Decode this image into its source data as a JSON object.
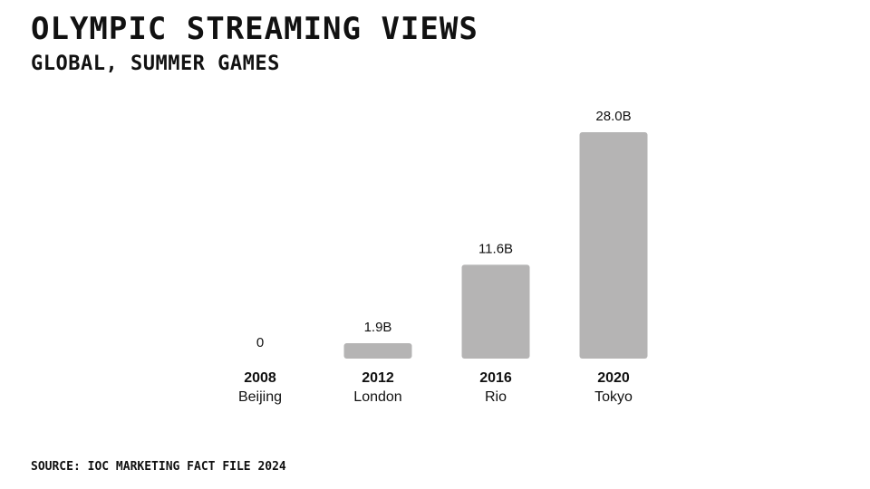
{
  "chart_data": {
    "type": "bar",
    "title": "Olympic Streaming Views",
    "subtitle": "Global, Summer Games",
    "source": "Source: IOC Marketing Fact File 2024",
    "categories": [
      "2008",
      "2012",
      "2016",
      "2020"
    ],
    "category_sublabels": [
      "Beijing",
      "London",
      "Rio",
      "Tokyo"
    ],
    "values": [
      0,
      1.9,
      11.6,
      28.0
    ],
    "value_labels": [
      "0",
      "1.9B",
      "11.6B",
      "28.0B"
    ],
    "unit": "B",
    "ylim": [
      0,
      28.0
    ],
    "grid": false,
    "legend": "none",
    "bar_color": "#b5b4b4"
  }
}
